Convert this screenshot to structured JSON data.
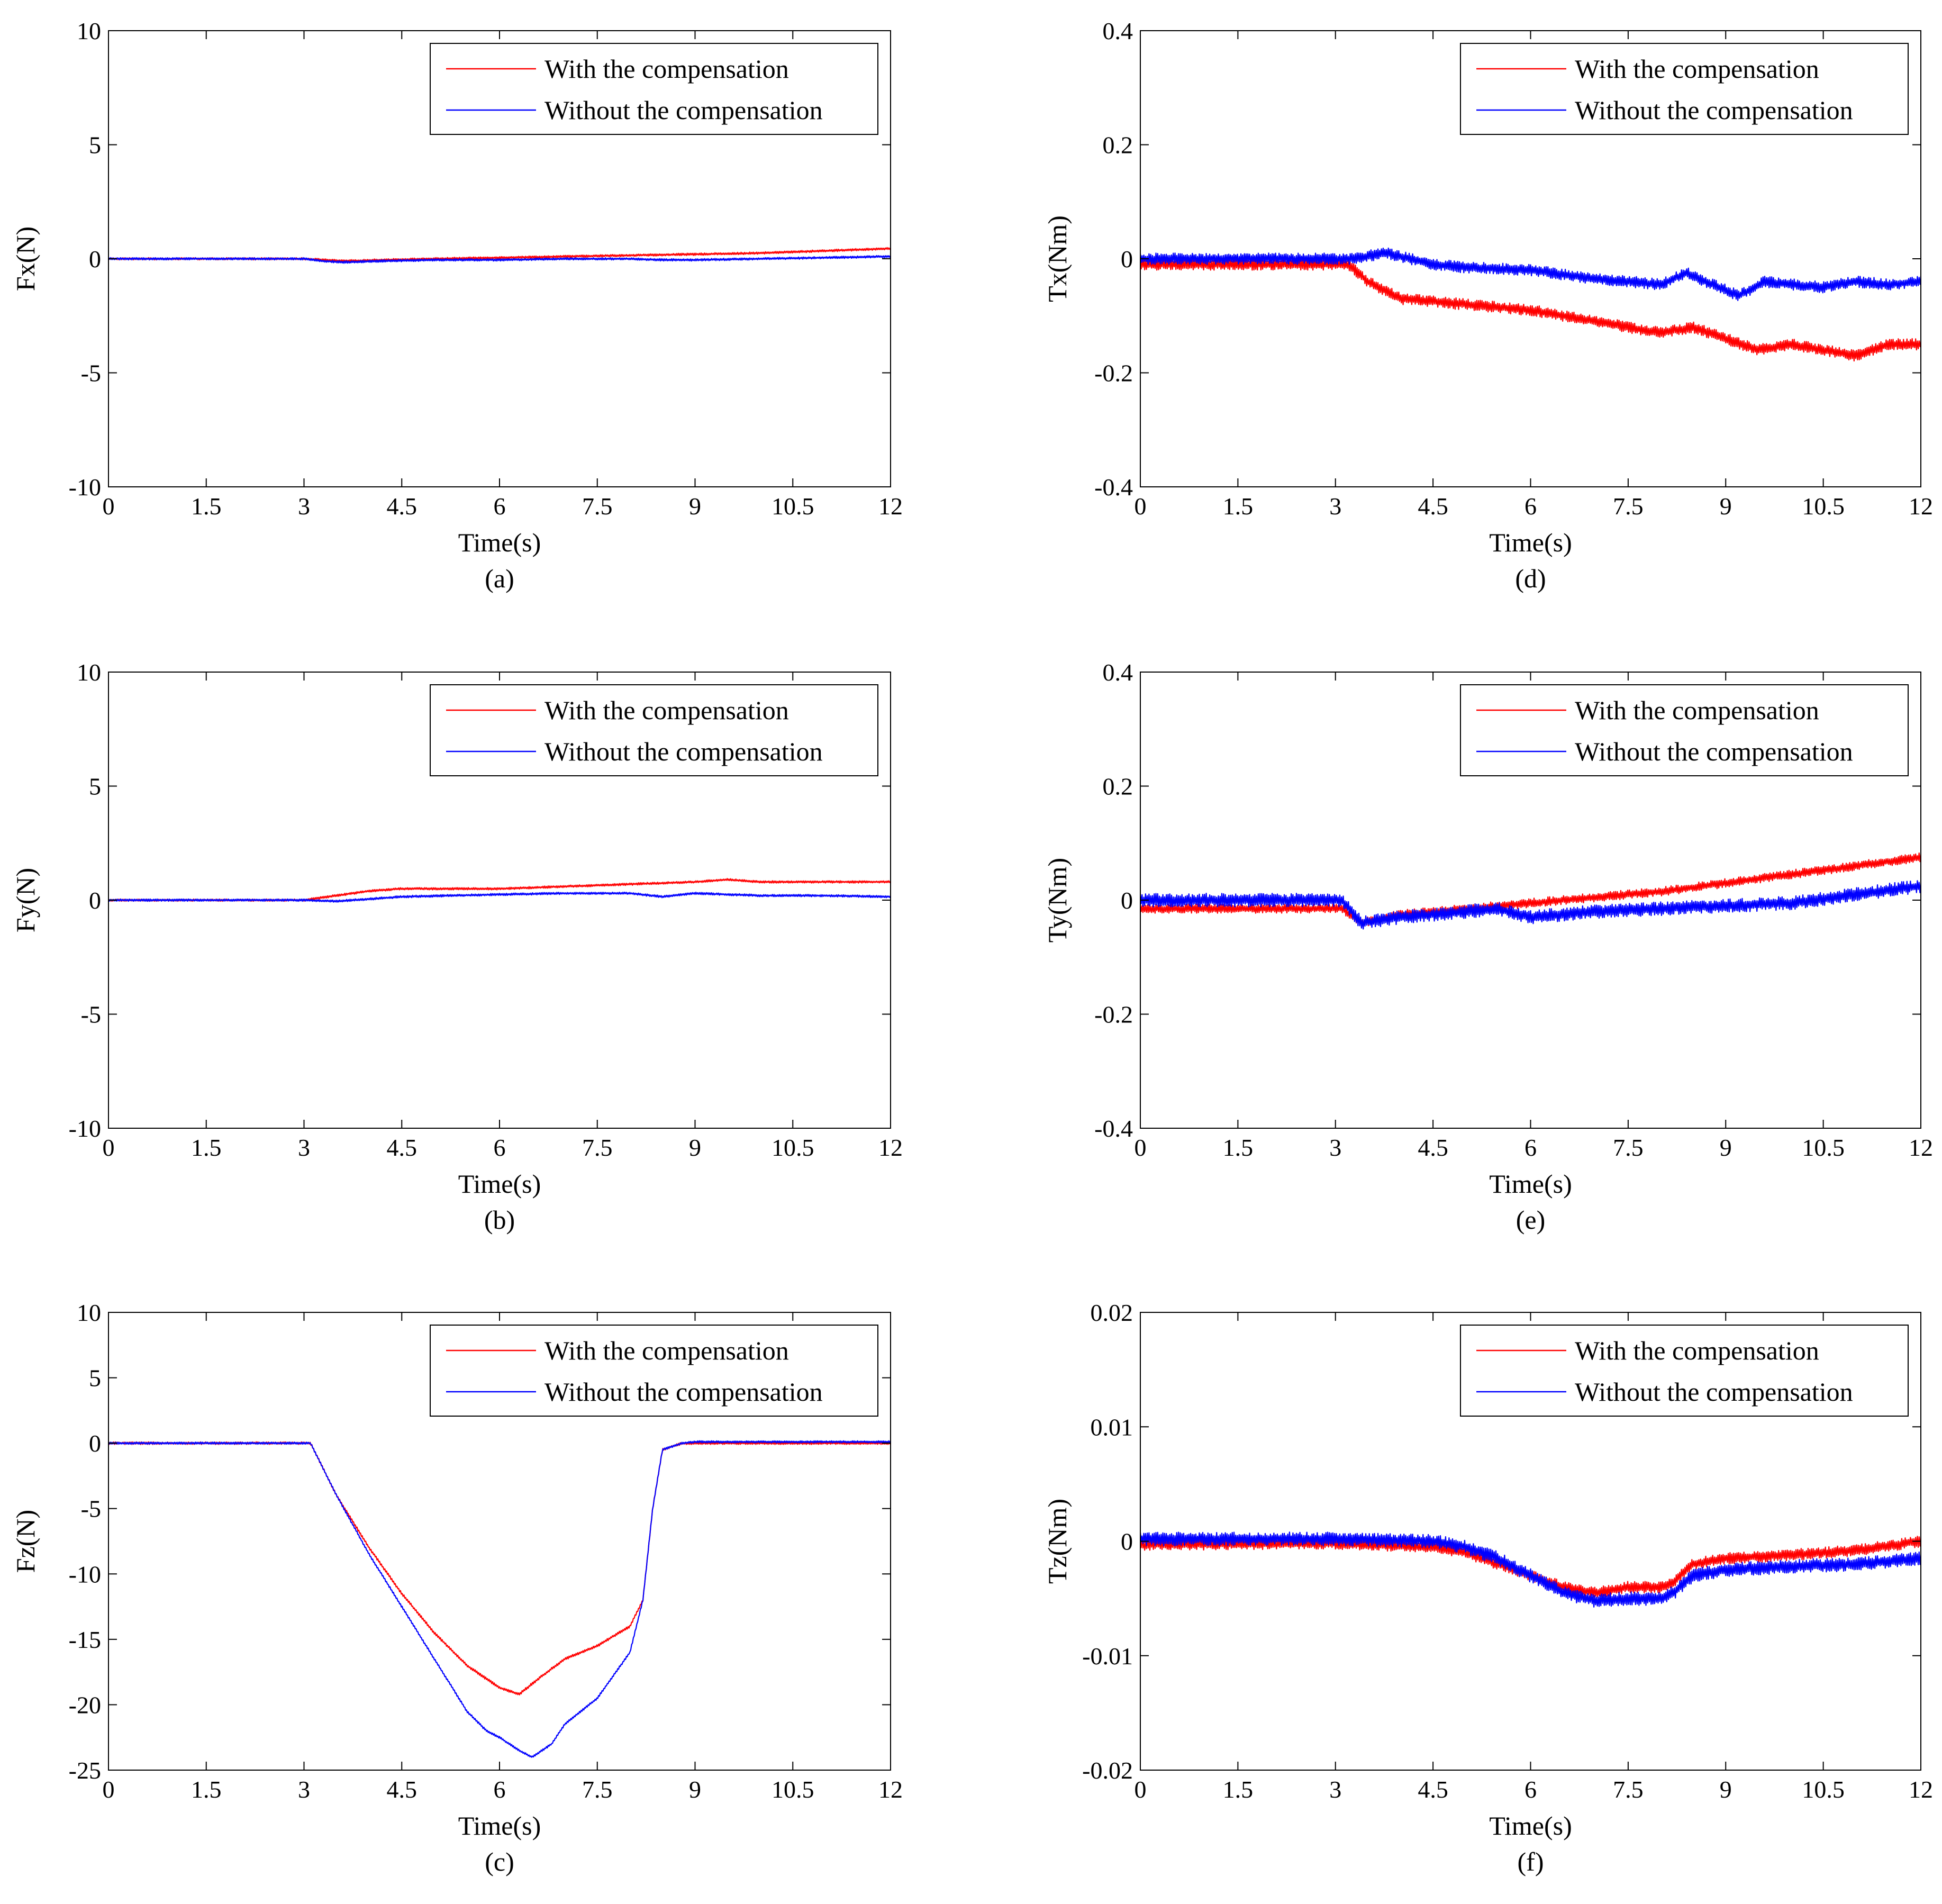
{
  "colors": {
    "with": "#ff0000",
    "without": "#0000ff",
    "axis": "#000000",
    "background": "#ffffff"
  },
  "chart_data": [
    {
      "id": "a",
      "type": "line",
      "caption": "(a)",
      "title": "",
      "xlabel": "Time(s)",
      "ylabel": "Fx(N)",
      "xlim": [
        0,
        12
      ],
      "ylim": [
        -10,
        10
      ],
      "xticks": [
        0,
        1.5,
        3,
        4.5,
        6,
        7.5,
        9,
        10.5,
        12
      ],
      "xtick_labels": [
        "0",
        "1.5",
        "3",
        "4.5",
        "6",
        "7.5",
        "9",
        "10.5",
        "12"
      ],
      "yticks": [
        -10,
        -5,
        0,
        5,
        10
      ],
      "ytick_labels": [
        "-10",
        "-5",
        "0",
        "5",
        "10"
      ],
      "legend": [
        "With the compensation",
        "Without the compensation"
      ],
      "legend_position": "top-right",
      "series": [
        {
          "name": "With the compensation",
          "color": "#ff0000",
          "noise": 0.05,
          "x": [
            0,
            3,
            3.3,
            3.6,
            4.2,
            5,
            6,
            7,
            8,
            9,
            10,
            11,
            12
          ],
          "y": [
            0,
            0,
            -0.05,
            -0.1,
            -0.05,
            0,
            0.05,
            0.1,
            0.15,
            0.2,
            0.25,
            0.35,
            0.45
          ]
        },
        {
          "name": "Without the compensation",
          "color": "#0000ff",
          "noise": 0.05,
          "x": [
            0,
            3,
            3.3,
            3.6,
            4.2,
            5,
            6,
            7,
            8,
            8.5,
            9,
            10,
            11,
            12
          ],
          "y": [
            0,
            0,
            -0.1,
            -0.15,
            -0.1,
            -0.05,
            -0.05,
            0,
            0,
            -0.05,
            -0.05,
            0,
            0.05,
            0.1
          ]
        }
      ]
    },
    {
      "id": "b",
      "type": "line",
      "caption": "(b)",
      "title": "",
      "xlabel": "Time(s)",
      "ylabel": "Fy(N)",
      "xlim": [
        0,
        12
      ],
      "ylim": [
        -10,
        10
      ],
      "xticks": [
        0,
        1.5,
        3,
        4.5,
        6,
        7.5,
        9,
        10.5,
        12
      ],
      "xtick_labels": [
        "0",
        "1.5",
        "3",
        "4.5",
        "6",
        "7.5",
        "9",
        "10.5",
        "12"
      ],
      "yticks": [
        -10,
        -5,
        0,
        5,
        10
      ],
      "ytick_labels": [
        "-10",
        "-5",
        "0",
        "5",
        "10"
      ],
      "legend": [
        "With the compensation",
        "Without the compensation"
      ],
      "legend_position": "top-right",
      "series": [
        {
          "name": "With the compensation",
          "color": "#ff0000",
          "noise": 0.05,
          "x": [
            0,
            3,
            3.5,
            4,
            4.5,
            6,
            7,
            8,
            9,
            9.5,
            10,
            11,
            12
          ],
          "y": [
            0,
            0,
            0.2,
            0.4,
            0.5,
            0.5,
            0.6,
            0.7,
            0.8,
            0.9,
            0.8,
            0.8,
            0.8
          ]
        },
        {
          "name": "Without the compensation",
          "color": "#0000ff",
          "noise": 0.05,
          "x": [
            0,
            3,
            3.5,
            4,
            4.5,
            6,
            7,
            8,
            8.5,
            9,
            10,
            11,
            12
          ],
          "y": [
            0,
            0,
            -0.05,
            0.05,
            0.15,
            0.25,
            0.3,
            0.3,
            0.15,
            0.3,
            0.2,
            0.2,
            0.15
          ]
        }
      ]
    },
    {
      "id": "c",
      "type": "line",
      "caption": "(c)",
      "title": "",
      "xlabel": "Time(s)",
      "ylabel": "Fz(N)",
      "xlim": [
        0,
        12
      ],
      "ylim": [
        -25,
        10
      ],
      "xticks": [
        0,
        1.5,
        3,
        4.5,
        6,
        7.5,
        9,
        10.5,
        12
      ],
      "xtick_labels": [
        "0",
        "1.5",
        "3",
        "4.5",
        "6",
        "7.5",
        "9",
        "10.5",
        "12"
      ],
      "yticks": [
        -25,
        -20,
        -15,
        -10,
        -5,
        0,
        5,
        10
      ],
      "ytick_labels": [
        "-25",
        "-20",
        "-15",
        "-10",
        "-5",
        "0",
        "5",
        "10"
      ],
      "legend": [
        "With the compensation",
        "Without the compensation"
      ],
      "legend_position": "top-right",
      "series": [
        {
          "name": "With the compensation",
          "color": "#ff0000",
          "noise": 0.1,
          "x": [
            0,
            3.1,
            3.5,
            4,
            4.5,
            5,
            5.5,
            6,
            6.3,
            6.6,
            7,
            7.5,
            8,
            8.2,
            8.35,
            8.5,
            8.8,
            9,
            10,
            12
          ],
          "y": [
            0,
            0,
            -4,
            -8,
            -11.5,
            -14.5,
            -17,
            -18.7,
            -19.2,
            -18,
            -16.5,
            -15.5,
            -14,
            -12,
            -5,
            -0.5,
            0,
            0,
            0,
            0
          ]
        },
        {
          "name": "Without the compensation",
          "color": "#0000ff",
          "noise": 0.08,
          "x": [
            0,
            3.1,
            3.5,
            4,
            4.5,
            5,
            5.5,
            5.8,
            6,
            6.3,
            6.5,
            6.8,
            7,
            7.5,
            8,
            8.2,
            8.35,
            8.5,
            8.8,
            9,
            10,
            12
          ],
          "y": [
            0,
            0,
            -4,
            -8.5,
            -12.5,
            -16.5,
            -20.5,
            -22,
            -22.5,
            -23.5,
            -24,
            -23,
            -21.5,
            -19.5,
            -16,
            -12,
            -5,
            -0.5,
            0,
            0.1,
            0.1,
            0.1
          ]
        }
      ]
    },
    {
      "id": "d",
      "type": "line",
      "caption": "(d)",
      "title": "",
      "xlabel": "Time(s)",
      "ylabel": "Tx(Nm)",
      "xlim": [
        0,
        12
      ],
      "ylim": [
        -0.4,
        0.4
      ],
      "xticks": [
        0,
        1.5,
        3,
        4.5,
        6,
        7.5,
        9,
        10.5,
        12
      ],
      "xtick_labels": [
        "0",
        "1.5",
        "3",
        "4.5",
        "6",
        "7.5",
        "9",
        "10.5",
        "12"
      ],
      "yticks": [
        -0.4,
        -0.2,
        0,
        0.2,
        0.4
      ],
      "ytick_labels": [
        "-0.4",
        "-0.2",
        "0",
        "0.2",
        "0.4"
      ],
      "legend": [
        "With the compensation",
        "Without the compensation"
      ],
      "legend_position": "top-right",
      "series": [
        {
          "name": "With the compensation",
          "color": "#ff0000",
          "noise": 0.01,
          "x": [
            0,
            3.2,
            3.5,
            4,
            5,
            6,
            7,
            8,
            8.5,
            9,
            9.5,
            10,
            10.5,
            11,
            11.5,
            12
          ],
          "y": [
            -0.01,
            -0.01,
            -0.04,
            -0.07,
            -0.08,
            -0.09,
            -0.11,
            -0.13,
            -0.12,
            -0.14,
            -0.16,
            -0.15,
            -0.16,
            -0.17,
            -0.15,
            -0.15
          ]
        },
        {
          "name": "Without the compensation",
          "color": "#0000ff",
          "noise": 0.01,
          "x": [
            0,
            3.2,
            3.5,
            3.8,
            4.5,
            5,
            6,
            7,
            8,
            8.4,
            8.7,
            9.2,
            9.6,
            10,
            10.5,
            11,
            11.5,
            12
          ],
          "y": [
            0,
            0,
            0.005,
            0.01,
            -0.01,
            -0.015,
            -0.02,
            -0.035,
            -0.045,
            -0.025,
            -0.04,
            -0.065,
            -0.04,
            -0.045,
            -0.05,
            -0.04,
            -0.045,
            -0.04
          ]
        }
      ]
    },
    {
      "id": "e",
      "type": "line",
      "caption": "(e)",
      "title": "",
      "xlabel": "Time(s)",
      "ylabel": "Ty(Nm)",
      "xlim": [
        0,
        12
      ],
      "ylim": [
        -0.4,
        0.4
      ],
      "xticks": [
        0,
        1.5,
        3,
        4.5,
        6,
        7.5,
        9,
        10.5,
        12
      ],
      "xtick_labels": [
        "0",
        "1.5",
        "3",
        "4.5",
        "6",
        "7.5",
        "9",
        "10.5",
        "12"
      ],
      "yticks": [
        -0.4,
        -0.2,
        0,
        0.2,
        0.4
      ],
      "ytick_labels": [
        "-0.4",
        "-0.2",
        "0",
        "0.2",
        "0.4"
      ],
      "legend": [
        "With the compensation",
        "Without the compensation"
      ],
      "legend_position": "top-right",
      "series": [
        {
          "name": "With the compensation",
          "color": "#ff0000",
          "noise": 0.008,
          "x": [
            0,
            3.1,
            3.4,
            4,
            5,
            6,
            7,
            8,
            9,
            10,
            11,
            12
          ],
          "y": [
            -0.015,
            -0.015,
            -0.04,
            -0.025,
            -0.015,
            -0.005,
            0.005,
            0.015,
            0.03,
            0.045,
            0.06,
            0.075
          ]
        },
        {
          "name": "Without the compensation",
          "color": "#0000ff",
          "noise": 0.012,
          "x": [
            0,
            3.1,
            3.4,
            4,
            5,
            5.5,
            6,
            6.5,
            7,
            8,
            9,
            10,
            11,
            12
          ],
          "y": [
            0,
            0,
            -0.04,
            -0.03,
            -0.02,
            -0.015,
            -0.03,
            -0.025,
            -0.02,
            -0.015,
            -0.01,
            -0.005,
            0.01,
            0.025
          ]
        }
      ]
    },
    {
      "id": "f",
      "type": "line",
      "caption": "(f)",
      "title": "",
      "xlabel": "Time(s)",
      "ylabel": "Tz(Nm)",
      "xlim": [
        0,
        12
      ],
      "ylim": [
        -0.02,
        0.02
      ],
      "xticks": [
        0,
        1.5,
        3,
        4.5,
        6,
        7.5,
        9,
        10.5,
        12
      ],
      "xtick_labels": [
        "0",
        "1.5",
        "3",
        "4.5",
        "6",
        "7.5",
        "9",
        "10.5",
        "12"
      ],
      "yticks": [
        -0.02,
        -0.01,
        0,
        0.01,
        0.02
      ],
      "ytick_labels": [
        "-0.02",
        "-0.01",
        "0",
        "0.01",
        "0.02"
      ],
      "legend": [
        "With the compensation",
        "Without the compensation"
      ],
      "legend_position": "top-right",
      "series": [
        {
          "name": "With the compensation",
          "color": "#ff0000",
          "noise": 0.0005,
          "x": [
            0,
            3,
            4.5,
            5,
            5.5,
            6,
            6.5,
            7,
            7.5,
            8,
            8.2,
            8.5,
            9,
            10,
            11,
            12
          ],
          "y": [
            -0.0003,
            -0.0002,
            -0.0005,
            -0.001,
            -0.002,
            -0.003,
            -0.004,
            -0.0045,
            -0.004,
            -0.004,
            -0.0035,
            -0.002,
            -0.0015,
            -0.0012,
            -0.0008,
            0
          ]
        },
        {
          "name": "Without the compensation",
          "color": "#0000ff",
          "noise": 0.0006,
          "x": [
            0,
            3,
            4.5,
            5,
            5.5,
            6,
            6.5,
            7,
            7.5,
            8,
            8.2,
            8.5,
            9,
            10,
            11,
            12
          ],
          "y": [
            0.0002,
            0.0002,
            0,
            -0.0005,
            -0.0015,
            -0.003,
            -0.0045,
            -0.0052,
            -0.005,
            -0.005,
            -0.0045,
            -0.003,
            -0.0025,
            -0.0022,
            -0.002,
            -0.0015
          ]
        }
      ]
    }
  ]
}
